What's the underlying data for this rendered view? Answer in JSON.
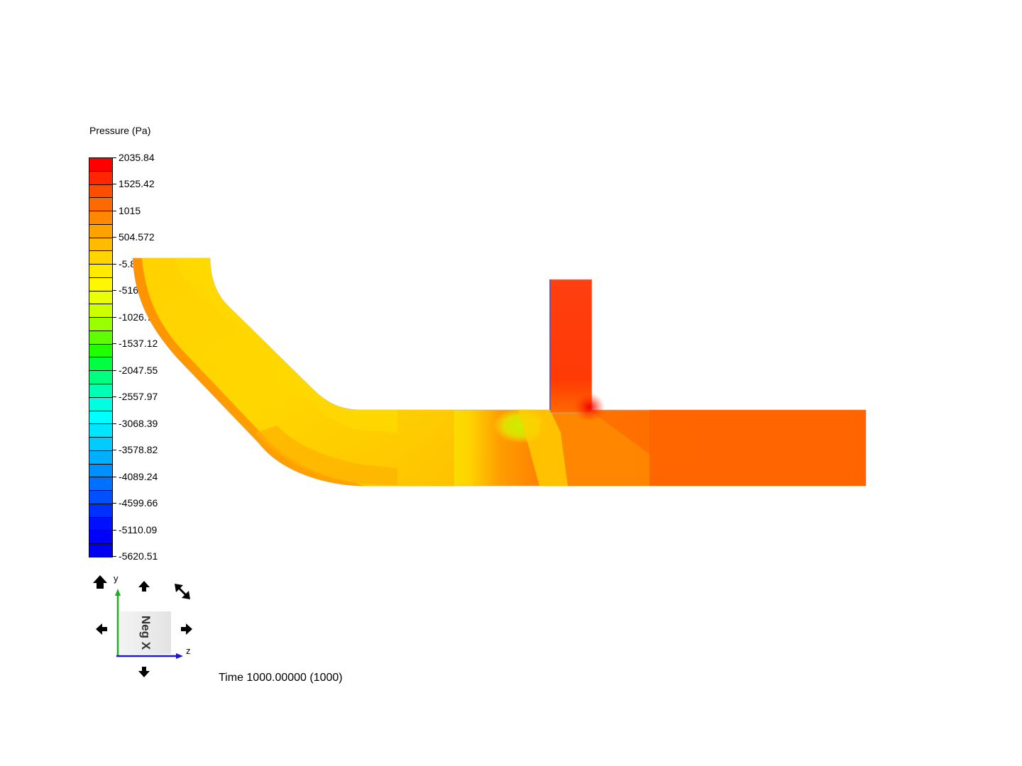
{
  "legend": {
    "title": "Pressure (Pa)",
    "ticks": [
      "2035.84",
      "1525.42",
      "1015",
      "504.572",
      "-5.85156",
      "-516.275",
      "-1026.7",
      "-1537.12",
      "-2047.55",
      "-2557.97",
      "-3068.39",
      "-3578.82",
      "-4089.24",
      "-4599.66",
      "-5110.09",
      "-5620.51"
    ],
    "colors": [
      "#ff0000",
      "#ff2600",
      "#ff4d00",
      "#ff6a00",
      "#ff8800",
      "#ffa200",
      "#ffbb00",
      "#ffd400",
      "#ffea00",
      "#fff700",
      "#eaff00",
      "#ccff00",
      "#9aff00",
      "#5dff00",
      "#1fff00",
      "#00ff40",
      "#00ff80",
      "#00ffb4",
      "#00ffe0",
      "#00ffff",
      "#00e6ff",
      "#00ccff",
      "#00b0ff",
      "#0090ff",
      "#0070ff",
      "#0050ff",
      "#0030ff",
      "#0010ff",
      "#0000ff",
      "#0000f0"
    ]
  },
  "time_label": "Time 1000.00000 (1000)",
  "orientation": {
    "view_label": "Neg X",
    "axis_y": "y",
    "axis_z": "z"
  },
  "accent": {
    "axis_y_color": "#22aa22",
    "axis_z_color": "#1a1acc"
  }
}
